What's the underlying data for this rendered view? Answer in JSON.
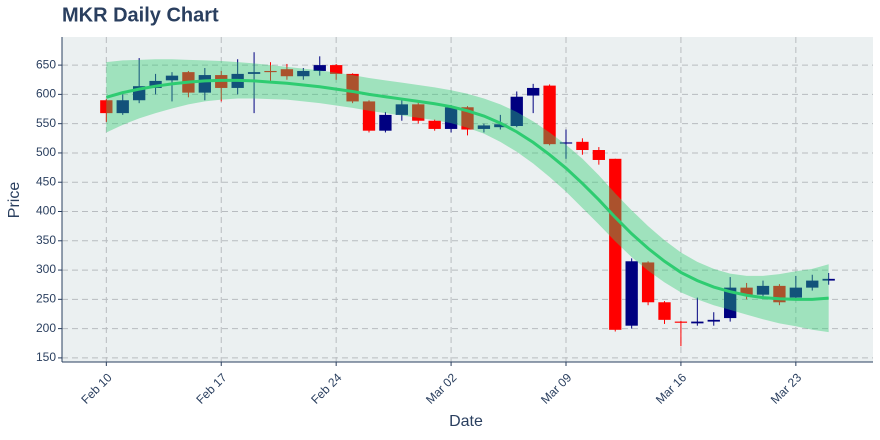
{
  "chart_data": {
    "type": "candlestick",
    "title": "MKR Daily Chart",
    "x_label": "Date",
    "y_label": "Price",
    "categories": [
      "Feb 10",
      "Feb 11",
      "Feb 12",
      "Feb 13",
      "Feb 14",
      "Feb 15",
      "Feb 16",
      "Feb 17",
      "Feb 18",
      "Feb 19",
      "Feb 20",
      "Feb 21",
      "Feb 22",
      "Feb 23",
      "Feb 24",
      "Feb 25",
      "Feb 26",
      "Feb 27",
      "Feb 28",
      "Feb 29",
      "Mar 01",
      "Mar 02",
      "Mar 03",
      "Mar 04",
      "Mar 05",
      "Mar 06",
      "Mar 07",
      "Mar 08",
      "Mar 09",
      "Mar 10",
      "Mar 11",
      "Mar 12",
      "Mar 13",
      "Mar 14",
      "Mar 15",
      "Mar 16",
      "Mar 17",
      "Mar 18",
      "Mar 19",
      "Mar 20",
      "Mar 21",
      "Mar 22",
      "Mar 23",
      "Mar 24",
      "Mar 25"
    ],
    "open": [
      590,
      568,
      590,
      611,
      624,
      638,
      603,
      633,
      611,
      635,
      640,
      643,
      631,
      640,
      650,
      635,
      588,
      538,
      565,
      583,
      555,
      541,
      578,
      541,
      544,
      546,
      598,
      615,
      516,
      519,
      505,
      490,
      205,
      313,
      245,
      212,
      209,
      212,
      218,
      270,
      258,
      273,
      253,
      270,
      282
    ],
    "high": [
      592,
      600,
      662,
      635,
      638,
      640,
      645,
      640,
      660,
      672,
      655,
      652,
      645,
      665,
      652,
      636,
      590,
      570,
      590,
      590,
      557,
      582,
      580,
      550,
      565,
      605,
      618,
      617,
      540,
      525,
      510,
      490,
      320,
      315,
      247,
      213,
      253,
      228,
      288,
      278,
      282,
      276,
      290,
      292,
      295
    ],
    "low": [
      553,
      565,
      585,
      600,
      588,
      595,
      590,
      588,
      600,
      568,
      620,
      625,
      625,
      632,
      625,
      585,
      535,
      535,
      555,
      550,
      538,
      535,
      530,
      535,
      540,
      544,
      568,
      513,
      490,
      497,
      480,
      195,
      200,
      240,
      208,
      170,
      205,
      205,
      212,
      250,
      252,
      240,
      250,
      265,
      275
    ],
    "close": [
      568,
      590,
      614,
      623,
      632,
      603,
      633,
      611,
      635,
      638,
      638,
      631,
      640,
      650,
      635,
      588,
      538,
      565,
      583,
      555,
      541,
      578,
      540,
      547,
      549,
      596,
      611,
      515,
      518,
      505,
      488,
      198,
      315,
      245,
      215,
      210,
      212,
      215,
      270,
      258,
      273,
      245,
      270,
      282,
      285
    ],
    "increasing_color": "#000080",
    "decreasing_color": "#ff0000",
    "trend": {
      "color": "#2ecc71",
      "values": [
        595,
        603,
        609,
        614,
        618,
        621,
        623,
        624,
        624,
        623,
        621,
        619,
        616,
        613,
        609,
        605,
        600,
        596,
        592,
        588,
        584,
        579,
        572,
        563,
        551,
        536,
        518,
        497,
        474,
        448,
        420,
        390,
        362,
        337,
        315,
        296,
        282,
        271,
        263,
        257,
        253,
        251,
        250,
        250,
        252
      ],
      "upper": [
        655,
        658,
        659,
        660,
        660,
        659,
        658,
        657,
        655,
        653,
        650,
        647,
        644,
        641,
        637,
        633,
        628,
        624,
        620,
        616,
        612,
        607,
        601,
        593,
        583,
        570,
        554,
        535,
        514,
        490,
        462,
        431,
        402,
        375,
        351,
        330,
        314,
        302,
        294,
        290,
        290,
        293,
        298,
        302,
        310
      ],
      "lower": [
        535,
        548,
        559,
        568,
        576,
        583,
        588,
        591,
        593,
        593,
        592,
        591,
        588,
        585,
        581,
        577,
        572,
        568,
        564,
        560,
        556,
        551,
        543,
        533,
        519,
        502,
        482,
        459,
        434,
        406,
        378,
        349,
        322,
        299,
        279,
        262,
        250,
        240,
        232,
        224,
        216,
        209,
        204,
        198,
        194
      ]
    },
    "ylim": [
      143,
      698
    ],
    "yticks": [
      150,
      200,
      250,
      300,
      350,
      400,
      450,
      500,
      550,
      600,
      650
    ],
    "xticks": [
      "Feb 10",
      "Feb 17",
      "Feb 24",
      "Mar 02",
      "Mar 09",
      "Mar 16",
      "Mar 23"
    ],
    "grid": true
  }
}
